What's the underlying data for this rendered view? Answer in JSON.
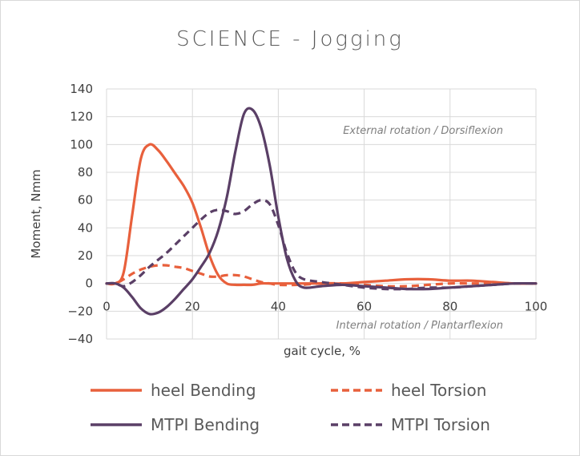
{
  "chart_data": {
    "type": "line",
    "title": "SCIENCE - Jogging",
    "xlabel": "gait cycle, %",
    "ylabel": "Moment, Nmm",
    "xlim": [
      0,
      100
    ],
    "ylim": [
      -40,
      140
    ],
    "x_ticks": [
      0,
      20,
      40,
      60,
      80,
      100
    ],
    "y_ticks": [
      -40,
      -20,
      0,
      20,
      40,
      60,
      80,
      100,
      120,
      140
    ],
    "grid": true,
    "legend_position": "bottom",
    "annotations": [
      "External rotation / Dorsiflexion",
      "Internal rotation / Plantarflexion"
    ],
    "series": [
      {
        "name": "heel Bending",
        "color": "#e8603c",
        "dash": "solid",
        "x": [
          0,
          2,
          4,
          6,
          8,
          10,
          12,
          14,
          16,
          18,
          20,
          22,
          24,
          26,
          28,
          30,
          32,
          34,
          36,
          38,
          40,
          45,
          50,
          55,
          60,
          65,
          70,
          75,
          80,
          85,
          90,
          95,
          100
        ],
        "y": [
          0,
          0,
          8,
          50,
          90,
          100,
          96,
          88,
          79,
          70,
          58,
          40,
          20,
          6,
          0,
          -1,
          -1,
          -1,
          0,
          0,
          0,
          0,
          0,
          0,
          1,
          2,
          3,
          3,
          2,
          2,
          1,
          0,
          0
        ]
      },
      {
        "name": "heel Torsion",
        "color": "#e8603c",
        "dash": "dashed",
        "x": [
          0,
          2,
          4,
          6,
          8,
          10,
          12,
          14,
          16,
          18,
          20,
          22,
          24,
          26,
          28,
          30,
          32,
          34,
          36,
          38,
          40,
          45,
          50,
          55,
          60,
          65,
          70,
          75,
          80,
          85,
          90,
          95,
          100
        ],
        "y": [
          0,
          0,
          3,
          7,
          10,
          12,
          13,
          13,
          12,
          11,
          9,
          7,
          5,
          5,
          6,
          6,
          5,
          3,
          1,
          0,
          -1,
          -1,
          0,
          0,
          -1,
          -2,
          -2,
          -1,
          0,
          0,
          0,
          0,
          0
        ]
      },
      {
        "name": "MTPI Bending",
        "color": "#5a3f66",
        "dash": "solid",
        "x": [
          0,
          2,
          4,
          6,
          8,
          10,
          12,
          14,
          16,
          18,
          20,
          22,
          24,
          26,
          28,
          30,
          32,
          34,
          36,
          38,
          40,
          42,
          44,
          46,
          50,
          55,
          60,
          65,
          70,
          75,
          80,
          85,
          90,
          95,
          100
        ],
        "y": [
          0,
          0,
          -3,
          -10,
          -18,
          -22,
          -21,
          -17,
          -11,
          -4,
          3,
          12,
          22,
          38,
          62,
          95,
          122,
          125,
          112,
          85,
          48,
          18,
          2,
          -3,
          -2,
          -1,
          -2,
          -3,
          -4,
          -4,
          -3,
          -2,
          -1,
          0,
          0
        ]
      },
      {
        "name": "MTPI Torsion",
        "color": "#5a3f66",
        "dash": "dashed",
        "x": [
          0,
          2,
          4,
          6,
          8,
          10,
          12,
          14,
          16,
          18,
          20,
          22,
          24,
          26,
          28,
          30,
          32,
          34,
          36,
          38,
          40,
          42,
          44,
          46,
          50,
          55,
          60,
          65,
          70,
          75,
          80,
          85,
          90,
          95,
          100
        ],
        "y": [
          0,
          0,
          -2,
          1,
          6,
          12,
          17,
          22,
          28,
          34,
          40,
          46,
          51,
          53,
          52,
          50,
          52,
          57,
          60,
          57,
          42,
          22,
          8,
          3,
          1,
          -1,
          -3,
          -4,
          -4,
          -3,
          -3,
          -2,
          -1,
          0,
          0
        ]
      }
    ]
  }
}
